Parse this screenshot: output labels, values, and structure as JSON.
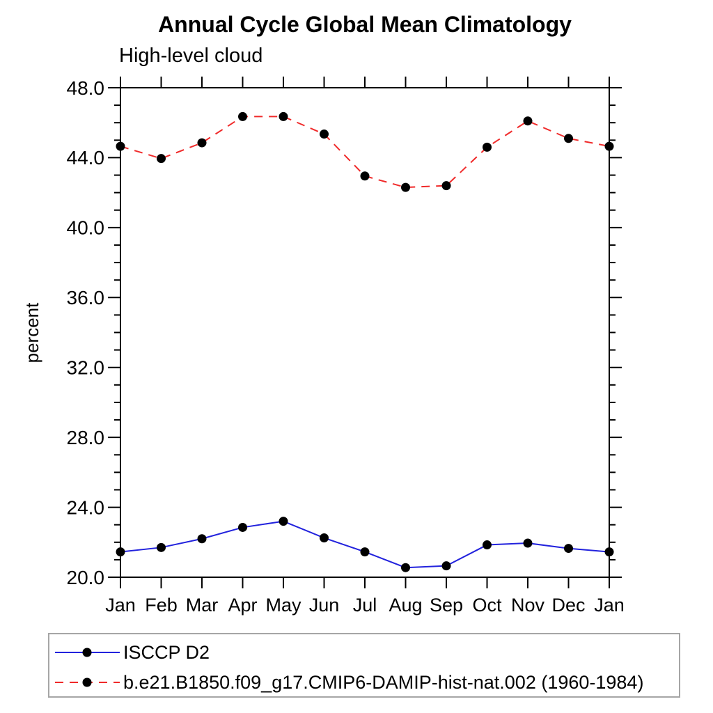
{
  "figure": {
    "background": "#ffffff"
  },
  "chart_data": {
    "type": "line",
    "title": "Annual Cycle Global Mean Climatology",
    "subtitle": "High-level cloud",
    "ylabel": "percent",
    "xlabel": "",
    "categories": [
      "Jan",
      "Feb",
      "Mar",
      "Apr",
      "May",
      "Jun",
      "Jul",
      "Aug",
      "Sep",
      "Oct",
      "Nov",
      "Dec",
      "Jan"
    ],
    "y_axis": {
      "range": [
        20.0,
        48.0
      ],
      "major": [
        20.0,
        24.0,
        28.0,
        32.0,
        36.0,
        40.0,
        44.0,
        48.0
      ],
      "major_labels": [
        "20.0",
        "24.0",
        "28.0",
        "32.0",
        "36.0",
        "40.0",
        "44.0",
        "48.0"
      ],
      "minor_step": 1.0
    },
    "grid": false,
    "legend_position": "bottom-left boxed",
    "axis_color": "#000000",
    "legend_border_color": "#a6a6a6",
    "series": [
      {
        "name": "ISCCP D2",
        "color": "#2222dd",
        "style": "solid",
        "marker": "circle",
        "marker_color": "#000000",
        "values": [
          21.45,
          21.7,
          22.2,
          22.85,
          23.2,
          22.25,
          21.45,
          20.55,
          20.65,
          21.85,
          21.95,
          21.65,
          21.45
        ]
      },
      {
        "name": "b.e21.B1850.f09_g17.CMIP6-DAMIP-hist-nat.002 (1960-1984)",
        "color": "#f02a2a",
        "style": "dashed",
        "marker": "circle",
        "marker_color": "#000000",
        "values": [
          44.65,
          43.95,
          44.85,
          46.35,
          46.35,
          45.35,
          42.95,
          42.3,
          42.4,
          44.6,
          46.1,
          45.1,
          44.65
        ]
      }
    ]
  }
}
